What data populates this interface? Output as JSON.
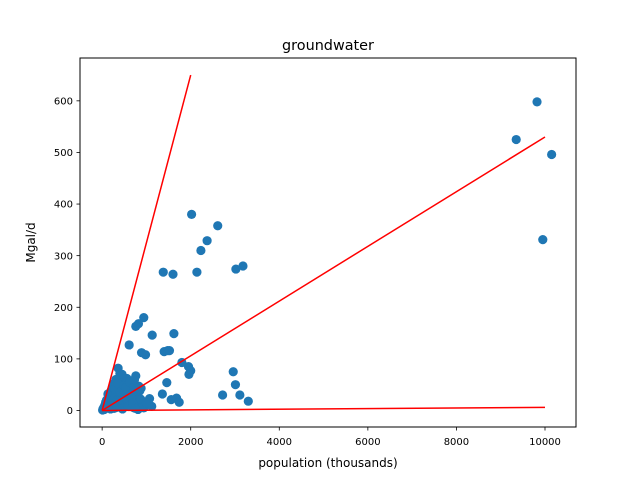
{
  "chart_data": {
    "type": "scatter",
    "title": "groundwater",
    "xlabel": "population (thousands)",
    "ylabel": "Mgal/d",
    "xlim": [
      -500,
      10700
    ],
    "ylim": [
      -32,
      683
    ],
    "xticks": [
      0,
      2000,
      4000,
      6000,
      8000,
      10000
    ],
    "yticks": [
      0,
      100,
      200,
      300,
      400,
      500,
      600
    ],
    "grid": false,
    "legend": "none",
    "marker_color": "#1f77b4",
    "line_color": "#ff0000",
    "series": [
      {
        "points": [
          [
            9350,
            525
          ],
          [
            9820,
            598
          ],
          [
            10150,
            496
          ],
          [
            9950,
            331
          ],
          [
            2020,
            380
          ],
          [
            2610,
            358
          ],
          [
            2370,
            329
          ],
          [
            2230,
            310
          ],
          [
            3180,
            280
          ],
          [
            3020,
            274
          ],
          [
            2140,
            268
          ],
          [
            1380,
            268
          ],
          [
            1600,
            264
          ],
          [
            940,
            180
          ],
          [
            820,
            168
          ],
          [
            760,
            163
          ],
          [
            1130,
            146
          ],
          [
            1620,
            149
          ],
          [
            610,
            127
          ],
          [
            890,
            112
          ],
          [
            980,
            108
          ],
          [
            1400,
            114
          ],
          [
            1480,
            116
          ],
          [
            1520,
            116
          ],
          [
            1800,
            93
          ],
          [
            1950,
            85
          ],
          [
            2000,
            77
          ],
          [
            1960,
            70
          ],
          [
            2960,
            75
          ],
          [
            3010,
            50
          ],
          [
            1460,
            54
          ],
          [
            2720,
            30
          ],
          [
            3110,
            30
          ],
          [
            3300,
            18
          ],
          [
            1360,
            32
          ],
          [
            1680,
            24
          ],
          [
            1560,
            21
          ],
          [
            1740,
            16
          ],
          [
            1070,
            23
          ],
          [
            1120,
            8
          ],
          [
            940,
            5
          ],
          [
            760,
            67
          ],
          [
            560,
            62
          ],
          [
            480,
            57
          ],
          [
            830,
            47
          ],
          [
            880,
            43
          ],
          [
            360,
            82
          ],
          [
            400,
            72
          ],
          [
            450,
            70
          ],
          [
            310,
            60
          ],
          [
            260,
            52
          ],
          [
            240,
            45
          ],
          [
            200,
            38
          ],
          [
            170,
            28
          ],
          [
            130,
            32
          ],
          [
            100,
            20
          ],
          [
            80,
            16
          ],
          [
            60,
            10
          ],
          [
            40,
            6
          ],
          [
            20,
            3
          ],
          [
            10,
            1
          ],
          [
            30,
            4
          ],
          [
            50,
            2
          ],
          [
            70,
            8
          ],
          [
            90,
            12
          ],
          [
            110,
            6
          ],
          [
            140,
            15
          ],
          [
            160,
            10
          ],
          [
            180,
            22
          ],
          [
            220,
            18
          ],
          [
            250,
            30
          ],
          [
            280,
            25
          ],
          [
            300,
            12
          ],
          [
            320,
            35
          ],
          [
            340,
            20
          ],
          [
            370,
            45
          ],
          [
            390,
            8
          ],
          [
            420,
            28
          ],
          [
            440,
            50
          ],
          [
            470,
            15
          ],
          [
            500,
            38
          ],
          [
            520,
            25
          ],
          [
            540,
            10
          ],
          [
            580,
            45
          ],
          [
            600,
            30
          ],
          [
            630,
            18
          ],
          [
            650,
            40
          ],
          [
            680,
            52
          ],
          [
            700,
            35
          ],
          [
            720,
            5
          ],
          [
            740,
            28
          ],
          [
            780,
            20
          ],
          [
            800,
            12
          ],
          [
            810,
            2
          ],
          [
            850,
            38
          ],
          [
            870,
            22
          ],
          [
            900,
            6
          ],
          [
            1000,
            15
          ],
          [
            150,
            5
          ],
          [
            190,
            3
          ],
          [
            210,
            8
          ],
          [
            230,
            12
          ],
          [
            270,
            4
          ],
          [
            290,
            42
          ],
          [
            330,
            6
          ],
          [
            350,
            52
          ],
          [
            410,
            36
          ],
          [
            460,
            3
          ],
          [
            490,
            48
          ],
          [
            530,
            44
          ],
          [
            560,
            20
          ],
          [
            590,
            8
          ],
          [
            620,
            55
          ],
          [
            660,
            26
          ],
          [
            690,
            14
          ],
          [
            710,
            46
          ],
          [
            730,
            60
          ],
          [
            750,
            4
          ]
        ]
      }
    ],
    "lines": [
      {
        "x": [
          0,
          2000
        ],
        "y": [
          0,
          650
        ]
      },
      {
        "x": [
          0,
          10000
        ],
        "y": [
          0,
          530
        ]
      },
      {
        "x": [
          0,
          10000
        ],
        "y": [
          0,
          6
        ]
      }
    ]
  }
}
